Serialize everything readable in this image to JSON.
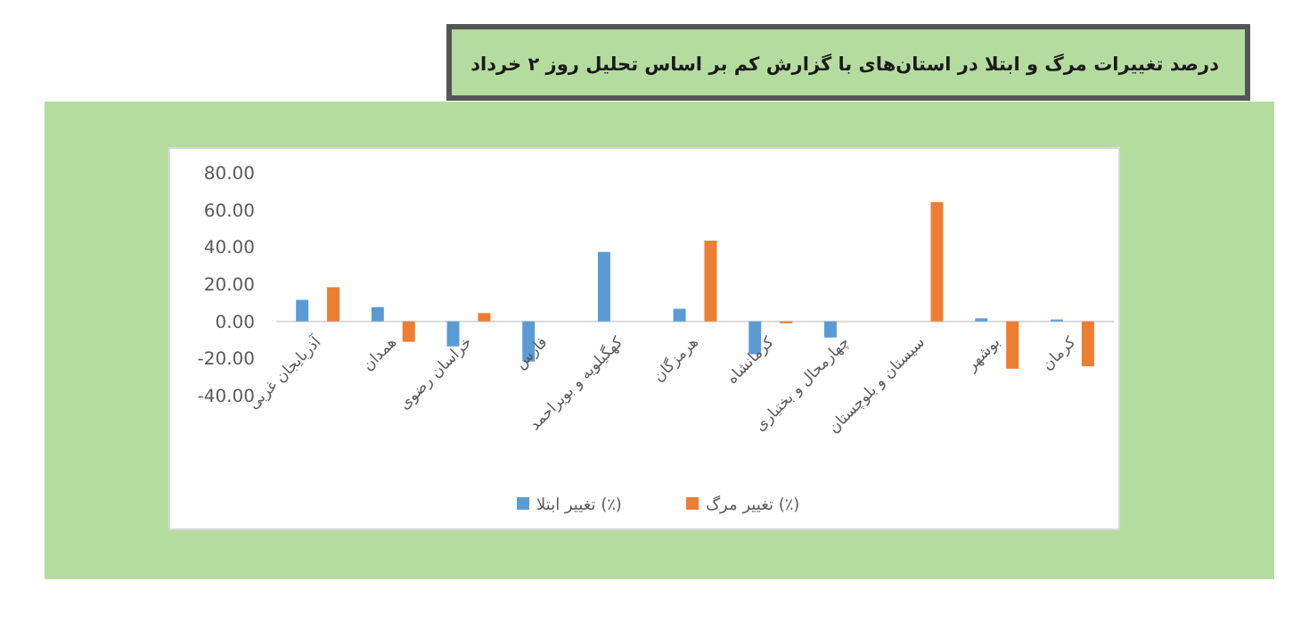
{
  "chart_data": {
    "type": "bar",
    "title": "درصد تغییرات مرگ و ابتلا در استان‌های با گزارش کم بر اساس تحلیل روز ۲ خرداد",
    "categories": [
      "آذربایجان غربی",
      "همدان",
      "خراسان رضوی",
      "فارس",
      "کهگیلویه و بویراحمد",
      "هرمزگان",
      "کرمانشاه",
      "چهارمحال و بختیاری",
      "سیستان و بلوچستان",
      "بوشهر",
      "کرمان"
    ],
    "series": [
      {
        "name": "تغییر ابتلا (٪)",
        "color": "#5b9bd5",
        "values": [
          11.6,
          7.7,
          -13.5,
          -21.6,
          37.4,
          6.8,
          -17.7,
          -8.7,
          null,
          1.6,
          1.0
        ]
      },
      {
        "name": "تغییر مرگ (٪)",
        "color": "#ed7d31",
        "values": [
          18.4,
          -11.0,
          4.5,
          null,
          null,
          43.5,
          -1.0,
          null,
          64.2,
          -25.5,
          -24.2
        ]
      }
    ],
    "ylim": [
      -40,
      80
    ],
    "yticks": [
      {
        "value": -40,
        "label": "-40.00"
      },
      {
        "value": -20,
        "label": "-20.00"
      },
      {
        "value": 0,
        "label": "0.00"
      },
      {
        "value": 20,
        "label": "20.00"
      },
      {
        "value": 40,
        "label": "40.00"
      },
      {
        "value": 60,
        "label": "60.00"
      },
      {
        "value": 80,
        "label": "80.00"
      }
    ],
    "legend": "bottom"
  }
}
